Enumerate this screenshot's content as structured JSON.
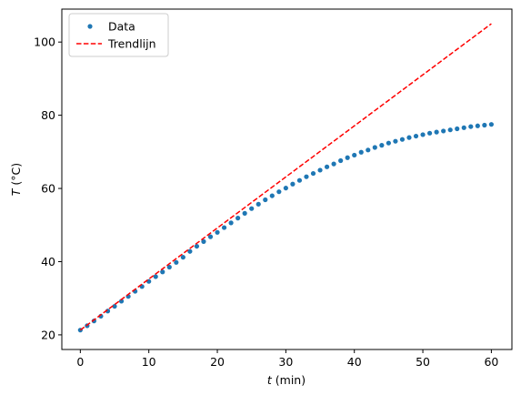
{
  "chart_data": {
    "type": "scatter",
    "xlabel_var": "t",
    "xlabel_unit": " (min)",
    "ylabel_var": "T",
    "ylabel_unit": " (°C)",
    "xlim": [
      -2.7,
      63.0
    ],
    "ylim": [
      16.0,
      109.0
    ],
    "xticks": [
      0,
      10,
      20,
      30,
      40,
      50,
      60
    ],
    "yticks": [
      20,
      40,
      60,
      80,
      100
    ],
    "grid": false,
    "legend_position": "top-left",
    "series": [
      {
        "name": "Data",
        "kind": "points",
        "color": "#1f77b4",
        "x": [
          0,
          1,
          2,
          3,
          4,
          5,
          6,
          7,
          8,
          9,
          10,
          11,
          12,
          13,
          14,
          15,
          16,
          17,
          18,
          19,
          20,
          21,
          22,
          23,
          24,
          25,
          26,
          27,
          28,
          29,
          30,
          31,
          32,
          33,
          34,
          35,
          36,
          37,
          38,
          39,
          40,
          41,
          42,
          43,
          44,
          45,
          46,
          47,
          48,
          49,
          50,
          51,
          52,
          53,
          54,
          55,
          56,
          57,
          58,
          59,
          60
        ],
        "y": [
          21.3,
          22.5,
          23.8,
          25.1,
          26.5,
          27.8,
          29.2,
          30.5,
          31.9,
          33.2,
          34.6,
          35.9,
          37.2,
          38.5,
          39.8,
          41.2,
          42.8,
          44.2,
          45.5,
          46.8,
          48.0,
          49.3,
          50.6,
          51.9,
          53.2,
          54.5,
          55.7,
          56.9,
          58.0,
          59.1,
          60.1,
          61.2,
          62.2,
          63.2,
          64.1,
          65.0,
          65.9,
          66.7,
          67.6,
          68.4,
          69.1,
          69.9,
          70.5,
          71.2,
          71.8,
          72.4,
          72.9,
          73.4,
          73.9,
          74.3,
          74.7,
          75.1,
          75.4,
          75.7,
          76.0,
          76.3,
          76.6,
          76.9,
          77.1,
          77.3,
          77.5
        ]
      },
      {
        "name": "Trendlijn",
        "kind": "dashed-line",
        "color": "#ff0000",
        "x": [
          0,
          60
        ],
        "y": [
          21.3,
          105.0
        ]
      }
    ]
  }
}
